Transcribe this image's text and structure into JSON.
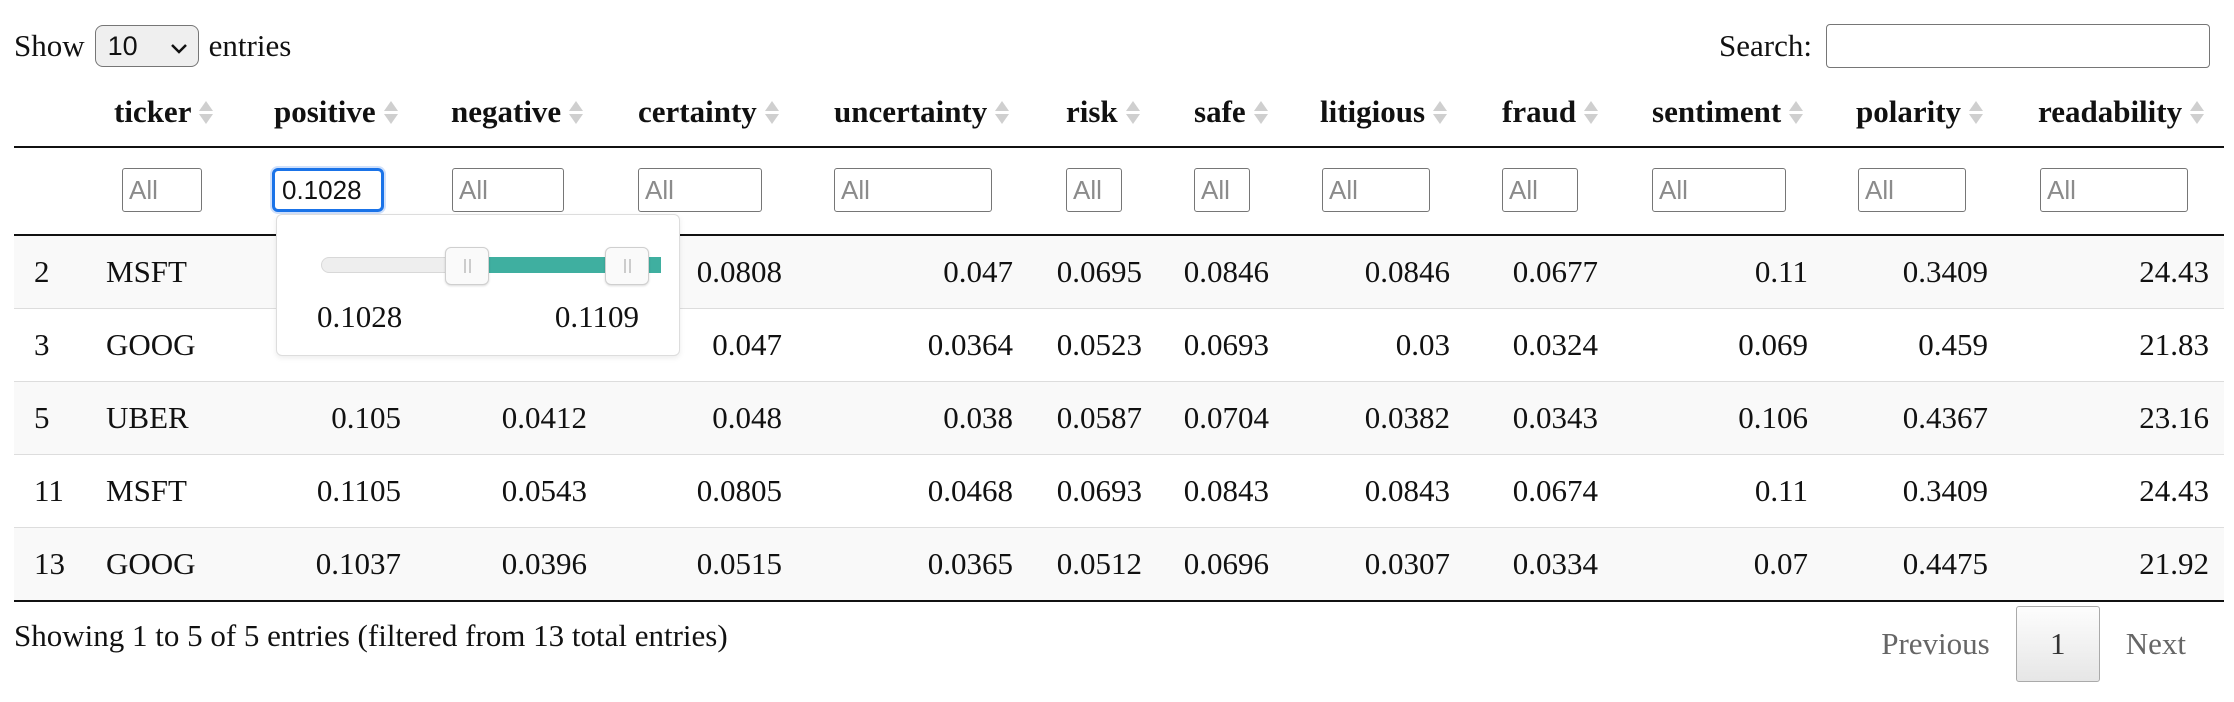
{
  "controls": {
    "show_label": "Show",
    "length_value": "10",
    "entries_label": "entries",
    "search_label": "Search:",
    "search_value": ""
  },
  "columns": [
    "",
    "ticker",
    "positive",
    "negative",
    "certainty",
    "uncertainty",
    "risk",
    "safe",
    "litigious",
    "fraud",
    "sentiment",
    "polarity",
    "readability"
  ],
  "filters": {
    "placeholder": "All",
    "positive_value": "0.1028"
  },
  "slider": {
    "min_label": "0.1028",
    "max_label": "0.1109",
    "range_fraction": [
      0.4,
      1.0
    ]
  },
  "rows": [
    {
      "id": "2",
      "ticker": "MSFT",
      "positive": "",
      "negative": "",
      "certainty": "0.0808",
      "uncertainty": "0.047",
      "risk": "0.0695",
      "safe": "0.0846",
      "litigious": "0.0846",
      "fraud": "0.0677",
      "sentiment": "0.11",
      "polarity": "0.3409",
      "readability": "24.43"
    },
    {
      "id": "3",
      "ticker": "GOOG",
      "positive": "",
      "negative": "",
      "certainty": "0.047",
      "uncertainty": "0.0364",
      "risk": "0.0523",
      "safe": "0.0693",
      "litigious": "0.03",
      "fraud": "0.0324",
      "sentiment": "0.069",
      "polarity": "0.459",
      "readability": "21.83"
    },
    {
      "id": "5",
      "ticker": "UBER",
      "positive": "0.105",
      "negative": "0.0412",
      "certainty": "0.048",
      "uncertainty": "0.038",
      "risk": "0.0587",
      "safe": "0.0704",
      "litigious": "0.0382",
      "fraud": "0.0343",
      "sentiment": "0.106",
      "polarity": "0.4367",
      "readability": "23.16"
    },
    {
      "id": "11",
      "ticker": "MSFT",
      "positive": "0.1105",
      "negative": "0.0543",
      "certainty": "0.0805",
      "uncertainty": "0.0468",
      "risk": "0.0693",
      "safe": "0.0843",
      "litigious": "0.0843",
      "fraud": "0.0674",
      "sentiment": "0.11",
      "polarity": "0.3409",
      "readability": "24.43"
    },
    {
      "id": "13",
      "ticker": "GOOG",
      "positive": "0.1037",
      "negative": "0.0396",
      "certainty": "0.0515",
      "uncertainty": "0.0365",
      "risk": "0.0512",
      "safe": "0.0696",
      "litigious": "0.0307",
      "fraud": "0.0334",
      "sentiment": "0.07",
      "polarity": "0.4475",
      "readability": "21.92"
    }
  ],
  "footer": {
    "info": "Showing 1 to 5 of 5 entries (filtered from 13 total entries)",
    "previous": "Previous",
    "current_page": "1",
    "next": "Next"
  },
  "colors": {
    "slider_range": "#3fafa0",
    "focus_border": "#1a73e8"
  }
}
